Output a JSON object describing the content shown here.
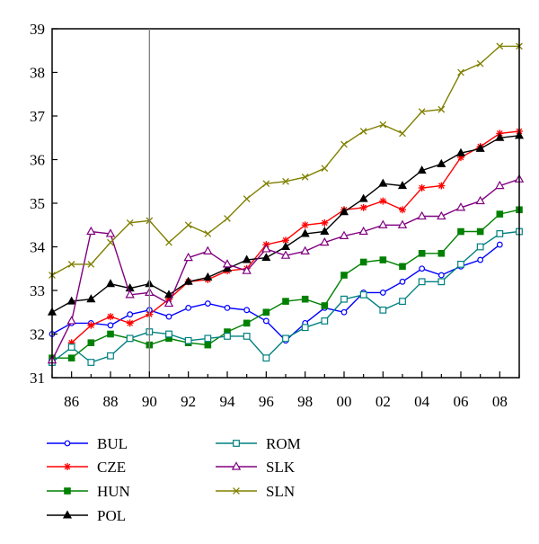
{
  "chart_data": {
    "type": "line",
    "title": "",
    "xlabel": "",
    "ylabel": "",
    "xlim": [
      1985,
      2009
    ],
    "ylim": [
      31,
      39
    ],
    "x_tick_values": [
      1986,
      1988,
      1990,
      1992,
      1994,
      1996,
      1998,
      2000,
      2002,
      2004,
      2006,
      2008
    ],
    "x_tick_labels": [
      "86",
      "88",
      "90",
      "92",
      "94",
      "96",
      "98",
      "00",
      "02",
      "04",
      "06",
      "08"
    ],
    "y_ticks": [
      31,
      32,
      33,
      34,
      35,
      36,
      37,
      38,
      39
    ],
    "grid": false,
    "vertical_reference_line_x": 1990,
    "legend_position": "bottom",
    "series": [
      {
        "name": "BUL",
        "color": "#0000ff",
        "marker": "circle-open",
        "x": [
          1985,
          1986,
          1987,
          1988,
          1989,
          1990,
          1991,
          1992,
          1993,
          1994,
          1995,
          1996,
          1997,
          1998,
          1999,
          2000,
          2001,
          2002,
          2003,
          2004,
          2005,
          2006,
          2007,
          2008
        ],
        "values": [
          32.0,
          32.25,
          32.25,
          32.2,
          32.45,
          32.55,
          32.4,
          32.6,
          32.7,
          32.6,
          32.55,
          32.3,
          31.85,
          32.25,
          32.6,
          32.5,
          32.95,
          32.95,
          33.2,
          33.5,
          33.35,
          33.55,
          33.7,
          34.05
        ]
      },
      {
        "name": "CZE",
        "color": "#ff0000",
        "marker": "asterisk",
        "x": [
          1986,
          1987,
          1988,
          1989,
          1990,
          1991,
          1992,
          1993,
          1994,
          1995,
          1996,
          1997,
          1998,
          1999,
          2000,
          2001,
          2002,
          2003,
          2004,
          2005,
          2006,
          2007,
          2008,
          2009
        ],
        "values": [
          31.8,
          32.2,
          32.4,
          32.25,
          32.45,
          32.8,
          33.2,
          33.25,
          33.45,
          33.5,
          34.05,
          34.15,
          34.5,
          34.55,
          34.85,
          34.9,
          35.05,
          34.85,
          35.35,
          35.4,
          36.05,
          36.3,
          36.6,
          36.65
        ]
      },
      {
        "name": "HUN",
        "color": "#008000",
        "marker": "square-filled",
        "x": [
          1985,
          1986,
          1987,
          1988,
          1989,
          1990,
          1991,
          1992,
          1993,
          1994,
          1995,
          1996,
          1997,
          1998,
          1999,
          2000,
          2001,
          2002,
          2003,
          2004,
          2005,
          2006,
          2007,
          2008,
          2009
        ],
        "values": [
          31.45,
          31.45,
          31.8,
          32.0,
          31.9,
          31.75,
          31.9,
          31.8,
          31.75,
          32.05,
          32.25,
          32.5,
          32.75,
          32.8,
          32.65,
          33.35,
          33.65,
          33.7,
          33.55,
          33.85,
          33.85,
          34.35,
          34.35,
          34.75,
          34.85
        ]
      },
      {
        "name": "POL",
        "color": "#000000",
        "marker": "triangle-filled",
        "x": [
          1985,
          1986,
          1987,
          1988,
          1989,
          1990,
          1991,
          1992,
          1993,
          1994,
          1995,
          1996,
          1997,
          1998,
          1999,
          2000,
          2001,
          2002,
          2003,
          2004,
          2005,
          2006,
          2007,
          2008,
          2009
        ],
        "values": [
          32.5,
          32.75,
          32.8,
          33.15,
          33.05,
          33.15,
          32.9,
          33.2,
          33.3,
          33.5,
          33.7,
          33.75,
          34.0,
          34.3,
          34.35,
          34.8,
          35.1,
          35.45,
          35.4,
          35.75,
          35.9,
          36.15,
          36.25,
          36.5,
          36.55
        ]
      },
      {
        "name": "ROM",
        "color": "#008080",
        "marker": "square-open",
        "x": [
          1985,
          1986,
          1987,
          1988,
          1989,
          1990,
          1991,
          1992,
          1993,
          1994,
          1995,
          1996,
          1997,
          1998,
          1999,
          2000,
          2001,
          2002,
          2003,
          2004,
          2005,
          2006,
          2007,
          2008,
          2009
        ],
        "values": [
          31.35,
          31.7,
          31.35,
          31.5,
          31.9,
          32.05,
          32.0,
          31.85,
          31.9,
          31.95,
          31.95,
          31.45,
          31.9,
          32.15,
          32.3,
          32.8,
          32.9,
          32.55,
          32.75,
          33.2,
          33.2,
          33.6,
          34.0,
          34.3,
          34.35
        ]
      },
      {
        "name": "SLK",
        "color": "#800080",
        "marker": "triangle-open",
        "x": [
          1985,
          1986,
          1987,
          1988,
          1989,
          1990,
          1991,
          1992,
          1993,
          1994,
          1995,
          1996,
          1997,
          1998,
          1999,
          2000,
          2001,
          2002,
          2003,
          2004,
          2005,
          2006,
          2007,
          2008,
          2009
        ],
        "values": [
          31.4,
          32.3,
          34.35,
          34.3,
          32.9,
          32.95,
          32.7,
          33.75,
          33.9,
          33.6,
          33.45,
          33.95,
          33.8,
          33.9,
          34.1,
          34.25,
          34.35,
          34.5,
          34.5,
          34.7,
          34.7,
          34.9,
          35.05,
          35.4,
          35.55
        ]
      },
      {
        "name": "SLN",
        "color": "#808000",
        "marker": "x-cross",
        "x": [
          1985,
          1986,
          1987,
          1988,
          1989,
          1990,
          1991,
          1992,
          1993,
          1994,
          1995,
          1996,
          1997,
          1998,
          1999,
          2000,
          2001,
          2002,
          2003,
          2004,
          2005,
          2006,
          2007,
          2008,
          2009
        ],
        "values": [
          33.35,
          33.6,
          33.6,
          34.1,
          34.55,
          34.6,
          34.1,
          34.5,
          34.3,
          34.65,
          35.1,
          35.45,
          35.5,
          35.6,
          35.8,
          36.35,
          36.65,
          36.8,
          36.6,
          37.1,
          37.15,
          38.0,
          38.2,
          38.6,
          38.6
        ]
      }
    ]
  }
}
